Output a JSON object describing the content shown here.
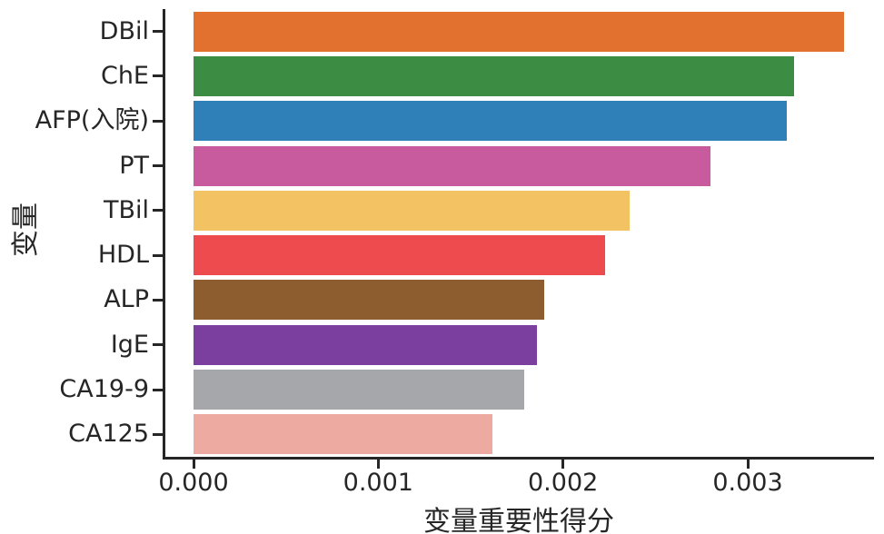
{
  "chart_data": {
    "type": "bar",
    "orientation": "horizontal",
    "title": "",
    "xlabel": "变量重要性得分",
    "ylabel": "变量",
    "categories": [
      "DBil",
      "ChE",
      "AFP(入院)",
      "PT",
      "TBil",
      "HDL",
      "ALP",
      "IgE",
      "CA19-9",
      "CA125"
    ],
    "values": [
      0.00352,
      0.00325,
      0.00321,
      0.0028,
      0.00236,
      0.00223,
      0.0019,
      0.00186,
      0.00179,
      0.00162
    ],
    "bar_colors": [
      "#e2702e",
      "#3d8c44",
      "#2f80b9",
      "#c75b9e",
      "#f3c262",
      "#ee4b4f",
      "#8d5c2f",
      "#7b3fa0",
      "#a6a7ab",
      "#ecaaa0"
    ],
    "x_ticks": [
      0,
      0.001,
      0.002,
      0.003
    ],
    "x_tick_labels": [
      "0.000",
      "0.001",
      "0.002",
      "0.003"
    ],
    "xlim": [
      -0.000163,
      0.003685
    ],
    "grid": false,
    "legend_position": null
  },
  "style": {
    "text_color": "#262626",
    "spine_color": "#262626",
    "background": "#ffffff"
  }
}
